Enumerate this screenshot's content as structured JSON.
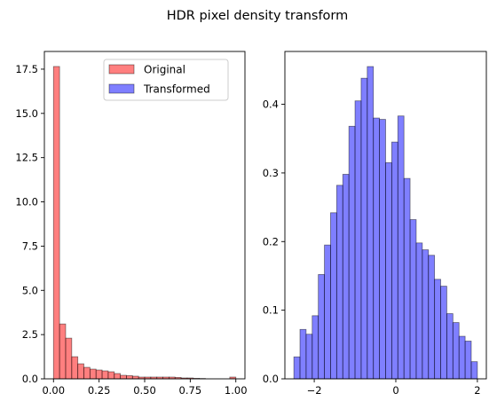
{
  "figure": {
    "title": "HDR pixel density transform"
  },
  "chart_data": [
    {
      "type": "bar",
      "histogram": true,
      "bin_edges": [
        0.0,
        0.03333,
        0.06667,
        0.1,
        0.13333,
        0.16667,
        0.2,
        0.23333,
        0.26667,
        0.3,
        0.33333,
        0.36667,
        0.4,
        0.43333,
        0.46667,
        0.5,
        0.53333,
        0.56667,
        0.6,
        0.63333,
        0.66667,
        0.7,
        0.73333,
        0.76667,
        0.8,
        0.83333,
        0.86667,
        0.9,
        0.93333,
        0.96667,
        1.0
      ],
      "series": [
        {
          "name": "Original",
          "color": "#ff0000",
          "values": [
            17.65,
            3.1,
            2.3,
            1.25,
            0.85,
            0.65,
            0.55,
            0.5,
            0.45,
            0.4,
            0.3,
            0.2,
            0.18,
            0.15,
            0.1,
            0.1,
            0.1,
            0.1,
            0.1,
            0.1,
            0.08,
            0.05,
            0.05,
            0.03,
            0.02,
            0.0,
            0.0,
            0.0,
            0.0,
            0.1
          ]
        }
      ],
      "xlim": [
        -0.05,
        1.05
      ],
      "ylim": [
        0,
        18.5
      ],
      "xticks": [
        0.0,
        0.25,
        0.5,
        0.75,
        1.0
      ],
      "xtick_labels": [
        "0.00",
        "0.25",
        "0.50",
        "0.75",
        "1.00"
      ],
      "yticks": [
        0,
        2.5,
        5,
        7.5,
        10,
        12.5,
        15,
        17.5
      ],
      "ytick_labels": [
        "0.0",
        "2.5",
        "5.0",
        "7.5",
        "10.0",
        "12.5",
        "15.0",
        "17.5"
      ],
      "grid": false,
      "legend": {
        "placement": "top-right",
        "entries": [
          "Original",
          "Transformed"
        ]
      }
    },
    {
      "type": "bar",
      "histogram": true,
      "bin_edges": [
        -2.5,
        -2.35,
        -2.2,
        -2.05,
        -1.9,
        -1.75,
        -1.6,
        -1.45,
        -1.3,
        -1.15,
        -1.0,
        -0.85,
        -0.7,
        -0.55,
        -0.4,
        -0.25,
        -0.1,
        0.05,
        0.2,
        0.35,
        0.5,
        0.65,
        0.8,
        0.95,
        1.1,
        1.25,
        1.4,
        1.55,
        1.7,
        1.85,
        2.0
      ],
      "series": [
        {
          "name": "Transformed",
          "color": "#0000ff",
          "values": [
            0.032,
            0.072,
            0.065,
            0.092,
            0.152,
            0.195,
            0.242,
            0.282,
            0.298,
            0.368,
            0.405,
            0.438,
            0.455,
            0.38,
            0.378,
            0.315,
            0.345,
            0.383,
            0.292,
            0.232,
            0.198,
            0.188,
            0.18,
            0.145,
            0.135,
            0.095,
            0.082,
            0.062,
            0.055,
            0.025
          ]
        }
      ],
      "xlim": [
        -2.72,
        2.22
      ],
      "ylim": [
        0,
        0.477
      ],
      "xticks": [
        -2,
        0,
        2
      ],
      "xtick_labels": [
        "−2",
        "0",
        "2"
      ],
      "yticks": [
        0,
        0.1,
        0.2,
        0.3,
        0.4
      ],
      "ytick_labels": [
        "0.0",
        "0.1",
        "0.2",
        "0.3",
        "0.4"
      ],
      "grid": false
    }
  ]
}
